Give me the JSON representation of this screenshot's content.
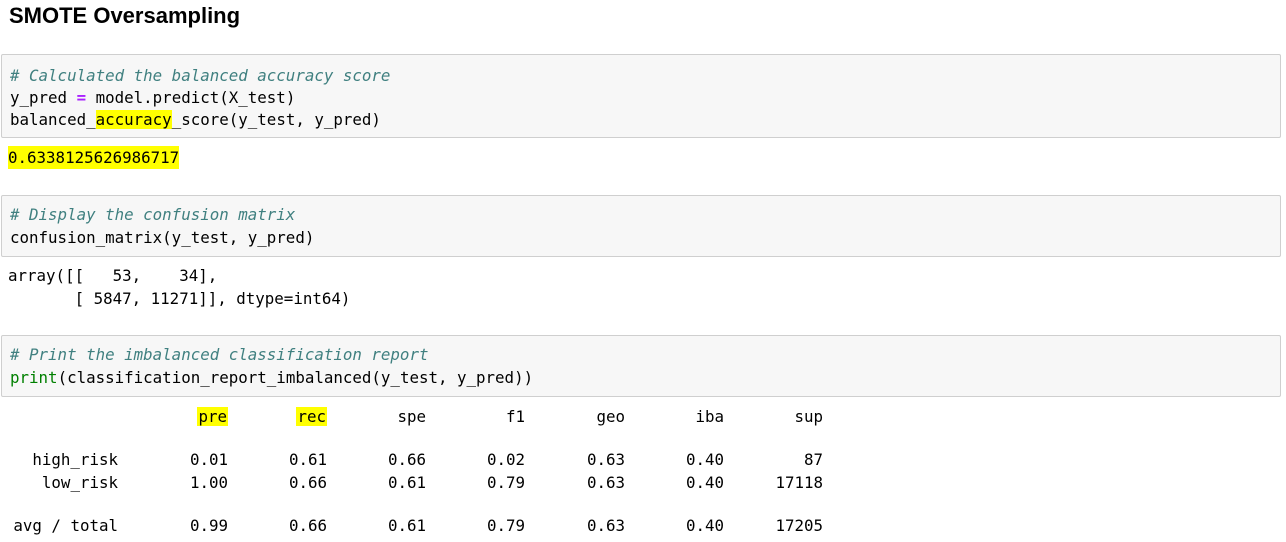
{
  "title": "SMOTE Oversampling",
  "cell1": {
    "comment": "# Calculated the balanced accuracy score",
    "line2_var": "y_pred ",
    "line2_op": "=",
    "line2_rest": " model.predict(X_test)",
    "line3_a": "balanced_",
    "line3_hl": "accuracy",
    "line3_b": "_score(y_test, y_pred)",
    "output": "0.6338125626986717"
  },
  "cell2": {
    "comment": "# Display the confusion matrix",
    "code": "confusion_matrix(y_test, y_pred)",
    "output_line1": "array([[   53,    34],",
    "output_line2": "       [ 5847, 11271]], dtype=int64)"
  },
  "cell3": {
    "comment": "# Print the imbalanced classification report",
    "code_kw": "print",
    "code_rest": "(classification_report_imbalanced(y_test, y_pred))"
  },
  "report": {
    "headers": [
      "pre",
      "rec",
      "spe",
      "f1",
      "geo",
      "iba",
      "sup"
    ],
    "rows": [
      {
        "label": "high_risk",
        "values": [
          "0.01",
          "0.61",
          "0.66",
          "0.02",
          "0.63",
          "0.40",
          "87"
        ]
      },
      {
        "label": "low_risk",
        "values": [
          "1.00",
          "0.66",
          "0.61",
          "0.79",
          "0.63",
          "0.40",
          "17118"
        ]
      },
      {
        "label": "avg / total",
        "values": [
          "0.99",
          "0.66",
          "0.61",
          "0.79",
          "0.63",
          "0.40",
          "17205"
        ]
      }
    ]
  }
}
